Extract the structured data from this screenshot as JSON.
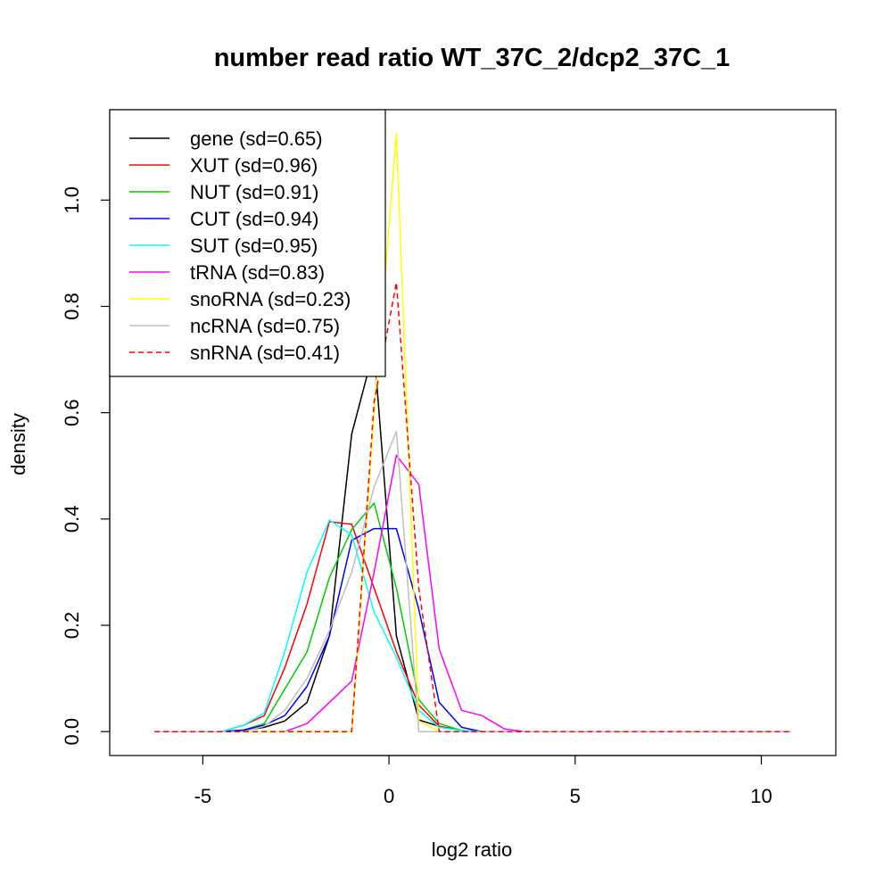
{
  "chart_data": {
    "type": "line",
    "title": "number read ratio WT_37C_2/dcp2_37C_1",
    "xlabel": "log2 ratio",
    "ylabel": "density",
    "xlim": [
      -7.5,
      12
    ],
    "ylim": [
      -0.045,
      1.17
    ],
    "x_ticks": [
      -5,
      0,
      5,
      10
    ],
    "y_ticks": [
      0.0,
      0.2,
      0.4,
      0.6,
      0.8,
      1.0
    ],
    "x_tick_labels": [
      "-5",
      "0",
      "5",
      "10"
    ],
    "y_tick_labels": [
      "0.0",
      "0.2",
      "0.4",
      "0.6",
      "0.8",
      "1.0"
    ],
    "grid": false,
    "legend_position": "top-left",
    "series": [
      {
        "name": "gene (sd=0.65)",
        "color": "#000000",
        "dash": "solid",
        "x": [
          -6.3,
          -4.5,
          -3.9,
          -3.35,
          -2.8,
          -2.2,
          -1.6,
          -1.0,
          -0.4,
          0.2,
          0.8,
          1.35,
          1.95,
          2.5,
          10.8
        ],
        "y": [
          0,
          0,
          0.002,
          0.008,
          0.02,
          0.055,
          0.18,
          0.56,
          0.72,
          0.18,
          0.022,
          0.01,
          0.002,
          0,
          0
        ]
      },
      {
        "name": "XUT (sd=0.96)",
        "color": "#ff0000",
        "dash": "solid",
        "x": [
          -6.3,
          -4.5,
          -3.9,
          -3.35,
          -2.8,
          -2.2,
          -1.6,
          -1.0,
          -0.4,
          0.2,
          0.8,
          1.35,
          1.95,
          2.5,
          10.8
        ],
        "y": [
          0,
          0,
          0.012,
          0.03,
          0.12,
          0.24,
          0.395,
          0.39,
          0.27,
          0.15,
          0.05,
          0.01,
          0.002,
          0,
          0
        ]
      },
      {
        "name": "NUT (sd=0.91)",
        "color": "#00cd00",
        "dash": "solid",
        "x": [
          -6.3,
          -4.5,
          -3.9,
          -3.35,
          -2.8,
          -2.2,
          -1.6,
          -1.0,
          -0.4,
          0.2,
          0.8,
          1.35,
          1.95,
          2.5,
          10.8
        ],
        "y": [
          0,
          0,
          0.003,
          0.015,
          0.08,
          0.15,
          0.29,
          0.38,
          0.43,
          0.27,
          0.06,
          0.015,
          0.002,
          0,
          0
        ]
      },
      {
        "name": "CUT (sd=0.94)",
        "color": "#0000ff",
        "dash": "solid",
        "x": [
          -6.3,
          -4.5,
          -3.9,
          -3.35,
          -2.8,
          -2.2,
          -1.6,
          -1.0,
          -0.4,
          0.2,
          0.8,
          1.35,
          1.95,
          2.5,
          10.8
        ],
        "y": [
          0,
          0,
          0.003,
          0.012,
          0.03,
          0.085,
          0.18,
          0.36,
          0.382,
          0.382,
          0.23,
          0.055,
          0.008,
          0,
          0
        ]
      },
      {
        "name": "SUT (sd=0.95)",
        "color": "#00ffff",
        "dash": "solid",
        "x": [
          -6.3,
          -4.5,
          -3.9,
          -3.35,
          -2.8,
          -2.2,
          -1.6,
          -1.0,
          -0.4,
          0.2,
          0.8,
          1.35,
          1.95,
          2.5,
          10.8
        ],
        "y": [
          0,
          0,
          0.012,
          0.035,
          0.15,
          0.3,
          0.398,
          0.37,
          0.225,
          0.14,
          0.04,
          0.008,
          0.002,
          0,
          0
        ]
      },
      {
        "name": "tRNA (sd=0.83)",
        "color": "#ff00ff",
        "dash": "solid",
        "x": [
          -6.3,
          -2.8,
          -2.2,
          -1.6,
          -1.0,
          -0.4,
          0.2,
          0.8,
          1.35,
          1.95,
          2.5,
          3.1,
          3.65,
          10.8
        ],
        "y": [
          0,
          0,
          0.015,
          0.055,
          0.095,
          0.3,
          0.52,
          0.465,
          0.155,
          0.04,
          0.03,
          0.005,
          0,
          0
        ]
      },
      {
        "name": "snoRNA (sd=0.23)",
        "color": "#ffff00",
        "dash": "solid",
        "x": [
          -6.3,
          -1.0,
          -0.4,
          0.2,
          0.8,
          1.35,
          10.8
        ],
        "y": [
          0,
          0,
          0.6,
          1.125,
          0.02,
          0,
          0
        ]
      },
      {
        "name": "ncRNA (sd=0.75)",
        "color": "#bebebe",
        "dash": "solid",
        "x": [
          -6.3,
          -3.9,
          -3.35,
          -2.8,
          -2.2,
          -1.6,
          -1.0,
          -0.4,
          0.2,
          0.8,
          10.8
        ],
        "y": [
          0,
          0,
          0.01,
          0.04,
          0.1,
          0.19,
          0.3,
          0.46,
          0.565,
          0,
          0
        ]
      },
      {
        "name": "snRNA (sd=0.41)",
        "color": "#ff0000",
        "dash": "dashed",
        "x": [
          -6.3,
          -1.0,
          -0.4,
          0.2,
          0.8,
          1.35,
          10.8
        ],
        "y": [
          0,
          0,
          0.62,
          0.845,
          0.27,
          0,
          0
        ]
      }
    ]
  }
}
